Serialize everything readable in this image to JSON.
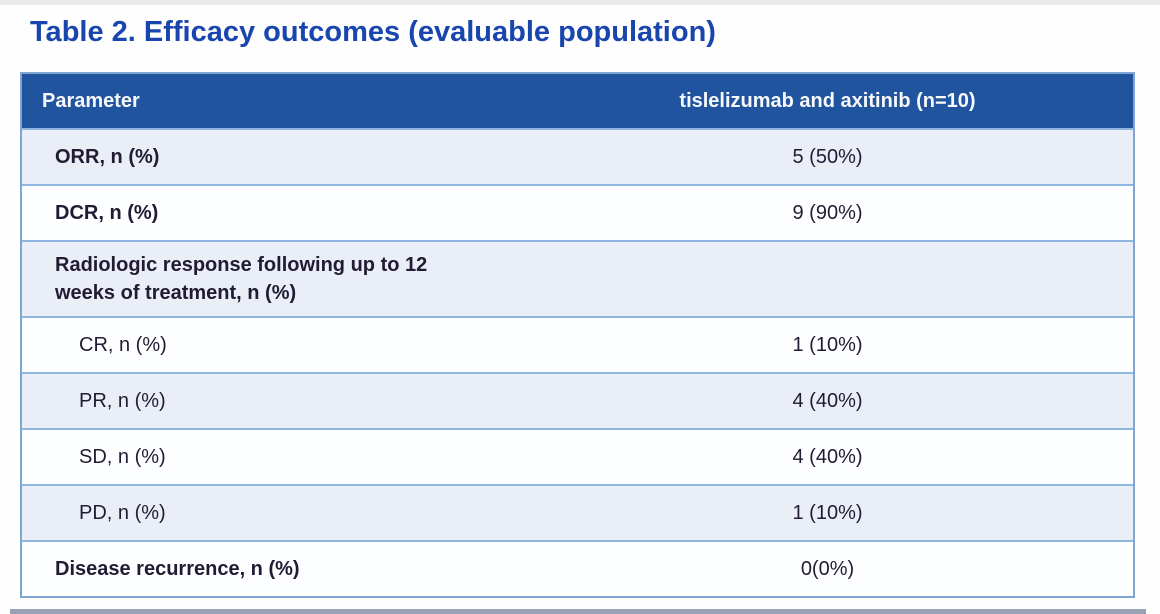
{
  "title": "Table 2. Efficacy outcomes (evaluable population)",
  "table": {
    "columns": [
      "Parameter",
      "tislelizumab and axitinib (n=10)"
    ],
    "rows": [
      {
        "key": "orr",
        "parameter": "ORR, n (%)",
        "value": "5 (50%)",
        "indent": false,
        "bold": true
      },
      {
        "key": "dcr",
        "parameter": "DCR, n (%)",
        "value": "9 (90%)",
        "indent": false,
        "bold": true
      },
      {
        "key": "radiologic-response",
        "parameter": "Radiologic response following up to 12\nweeks of treatment, n (%)",
        "value": "",
        "indent": false,
        "bold": true
      },
      {
        "key": "cr",
        "parameter": "CR, n (%)",
        "value": "1 (10%)",
        "indent": true,
        "bold": false
      },
      {
        "key": "pr",
        "parameter": "PR, n (%)",
        "value": "4 (40%)",
        "indent": true,
        "bold": false
      },
      {
        "key": "sd",
        "parameter": "SD, n (%)",
        "value": "4 (40%)",
        "indent": true,
        "bold": false
      },
      {
        "key": "pd",
        "parameter": "PD, n (%)",
        "value": "1 (10%)",
        "indent": true,
        "bold": false
      },
      {
        "key": "disease-recurrence",
        "parameter": "Disease recurrence, n (%)",
        "value": "0(0%)",
        "indent": false,
        "bold": true
      }
    ]
  },
  "colors": {
    "title": "#1846ae",
    "header_bg": "#21549f",
    "header_text": "#f7f9fc",
    "row_light_bg": "#e9eef7",
    "row_white_bg": "#fdfeff",
    "row_border": "#8fb6e0",
    "table_border": "#7fa5d2",
    "body_text": "#221b33",
    "top_strip": "#eaeaea",
    "bottom_strip": "#74849c"
  }
}
